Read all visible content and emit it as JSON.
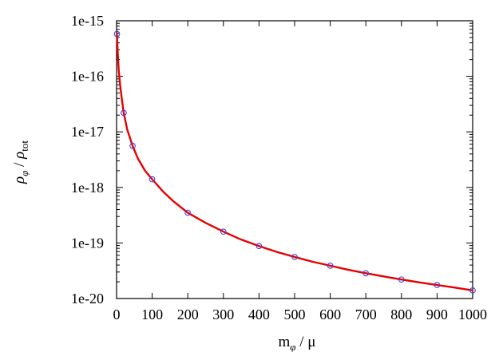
{
  "chart_data": {
    "type": "line",
    "title": "",
    "xlabel": "m_φ / μ",
    "ylabel": "ρ_φ / ρ_tot",
    "xlim": [
      0,
      1000
    ],
    "ylim": [
      1e-20,
      1e-15
    ],
    "yscale": "log",
    "grid": false,
    "legend": "none",
    "x_ticks": [
      "0",
      "100",
      "200",
      "300",
      "400",
      "500",
      "600",
      "700",
      "800",
      "900",
      "1000"
    ],
    "y_ticks": [
      "1e-20",
      "1e-19",
      "1e-18",
      "1e-17",
      "1e-16",
      "1e-15"
    ],
    "series": [
      {
        "kind": "points",
        "marker": "open-circle",
        "color": "#4b3fd1",
        "x": [
          1,
          20,
          45,
          100,
          200,
          300,
          400,
          500,
          600,
          700,
          800,
          900,
          1000
        ],
        "y": [
          5.8e-16,
          2.2e-17,
          5.6e-18,
          1.4e-18,
          3.5e-19,
          1.6e-19,
          8.8e-20,
          5.6e-20,
          3.9e-20,
          2.85e-20,
          2.2e-20,
          1.75e-20,
          1.4e-20
        ]
      },
      {
        "kind": "curve",
        "color": "#e60000",
        "x": [
          1,
          3,
          6,
          10,
          15,
          20,
          30,
          45,
          60,
          80,
          100,
          130,
          160,
          200,
          250,
          300,
          350,
          400,
          450,
          500,
          550,
          600,
          650,
          700,
          750,
          800,
          850,
          900,
          950,
          1000
        ],
        "y": [
          5.8e-16,
          2.8e-16,
          1.3e-16,
          7e-17,
          3.8e-17,
          2.2e-17,
          1.1e-17,
          5.6e-18,
          3.3e-18,
          2e-18,
          1.4e-18,
          8.5e-19,
          5.6e-19,
          3.5e-19,
          2.3e-19,
          1.6e-19,
          1.15e-19,
          8.8e-20,
          6.9e-20,
          5.6e-20,
          4.6e-20,
          3.9e-20,
          3.3e-20,
          2.85e-20,
          2.5e-20,
          2.2e-20,
          1.95e-20,
          1.75e-20,
          1.57e-20,
          1.4e-20
        ]
      }
    ]
  }
}
